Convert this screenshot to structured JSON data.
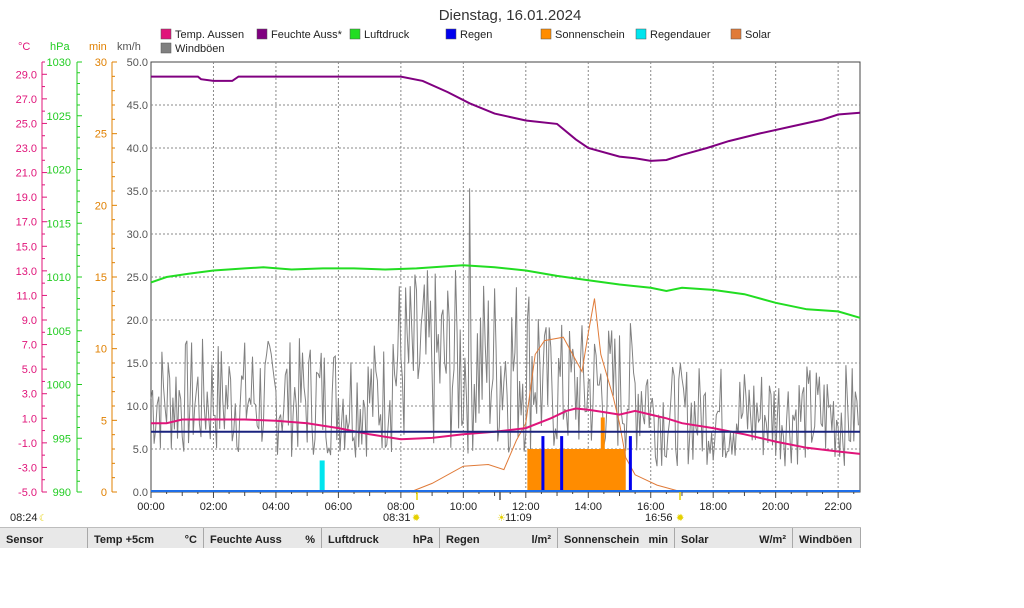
{
  "title": "Dienstag, 16.01.2024",
  "legend": [
    {
      "label": "Temp. Aussen",
      "color": "#e0157a"
    },
    {
      "label": "Feuchte Auss*",
      "color": "#800080"
    },
    {
      "label": "Luftdruck",
      "color": "#22dd22"
    },
    {
      "label": "Regen",
      "color": "#0000ee"
    },
    {
      "label": "Sonnenschein",
      "color": "#ff8c00"
    },
    {
      "label": "Regendauer",
      "color": "#00e5ee"
    },
    {
      "label": "Solar",
      "color": "#e07b39"
    },
    {
      "label": "Windböen",
      "color": "#808080"
    }
  ],
  "axes": {
    "temp": {
      "unit": "°C",
      "color": "#e0157a",
      "ticks": [
        "29.0",
        "27.0",
        "25.0",
        "23.0",
        "21.0",
        "19.0",
        "17.0",
        "15.0",
        "13.0",
        "11.0",
        "9.0",
        "7.0",
        "5.0",
        "3.0",
        "1.0",
        "-1.0",
        "-3.0",
        "-5.0"
      ],
      "range": [
        -5,
        30
      ]
    },
    "pressure": {
      "unit": "hPa",
      "color": "#22cc22",
      "ticks": [
        "1030",
        "1025",
        "1020",
        "1015",
        "1010",
        "1005",
        "1000",
        "995",
        "990"
      ],
      "range": [
        990,
        1030
      ]
    },
    "minutes": {
      "unit": "min",
      "color": "#e08000",
      "ticks": [
        "30",
        "25",
        "20",
        "15",
        "10",
        "5",
        "0"
      ],
      "range": [
        0,
        30
      ]
    },
    "wind": {
      "unit": "km/h",
      "color": "#555555",
      "ticks": [
        "50.0",
        "45.0",
        "40.0",
        "35.0",
        "30.0",
        "25.0",
        "20.0",
        "15.0",
        "10.0",
        "5.0",
        "0.0"
      ],
      "range": [
        0,
        50
      ]
    },
    "x_ticks": [
      "00:00",
      "02:00",
      "04:00",
      "06:00",
      "08:00",
      "10:00",
      "12:00",
      "14:00",
      "16:00",
      "18:00",
      "20:00",
      "22:00"
    ]
  },
  "markers": {
    "moonrise": "08:24",
    "sunrise": "08:31",
    "noon": "11:09",
    "sunset": "16:56"
  },
  "chart_data": {
    "type": "line",
    "x_unit": "hour of day",
    "x_range": [
      0,
      22.7
    ],
    "series": [
      {
        "name": "Feuchte Auss*",
        "axis": "wind",
        "color": "#800080",
        "points": [
          [
            0,
            48.3
          ],
          [
            1.5,
            48.3
          ],
          [
            1.6,
            48.0
          ],
          [
            2,
            47.8
          ],
          [
            2.6,
            47.8
          ],
          [
            2.8,
            48.3
          ],
          [
            8,
            48.3
          ],
          [
            8.7,
            47.8
          ],
          [
            9.5,
            46.5
          ],
          [
            10.2,
            45.2
          ],
          [
            11,
            44.0
          ],
          [
            12,
            43.2
          ],
          [
            13,
            42.8
          ],
          [
            13.6,
            41.0
          ],
          [
            14,
            40.0
          ],
          [
            15,
            39.0
          ],
          [
            15.5,
            38.8
          ],
          [
            16,
            38.5
          ],
          [
            16.5,
            38.6
          ],
          [
            17,
            39.2
          ],
          [
            17.8,
            40.0
          ],
          [
            18.5,
            40.8
          ],
          [
            19.5,
            41.7
          ],
          [
            20.5,
            42.5
          ],
          [
            21.5,
            43.3
          ],
          [
            22.0,
            43.9
          ],
          [
            22.7,
            44.1
          ]
        ]
      },
      {
        "name": "Luftdruck",
        "axis": "pressure",
        "color": "#22dd22",
        "points": [
          [
            0,
            1009.5
          ],
          [
            0.5,
            1010.0
          ],
          [
            1.2,
            1010.3
          ],
          [
            2,
            1010.6
          ],
          [
            3,
            1010.8
          ],
          [
            3.6,
            1010.9
          ],
          [
            4.5,
            1010.7
          ],
          [
            5.5,
            1010.8
          ],
          [
            6.5,
            1010.8
          ],
          [
            7.5,
            1010.7
          ],
          [
            8.5,
            1010.8
          ],
          [
            9.5,
            1011.0
          ],
          [
            10,
            1011.1
          ],
          [
            11,
            1010.9
          ],
          [
            12,
            1010.6
          ],
          [
            13,
            1010.1
          ],
          [
            14,
            1009.7
          ],
          [
            15,
            1009.3
          ],
          [
            16,
            1009.0
          ],
          [
            16.5,
            1008.7
          ],
          [
            17,
            1009.0
          ],
          [
            18,
            1008.8
          ],
          [
            19,
            1008.4
          ],
          [
            20,
            1007.6
          ],
          [
            21,
            1007.0
          ],
          [
            22,
            1006.8
          ],
          [
            22.7,
            1006.2
          ]
        ]
      },
      {
        "name": "Temp. Aussen",
        "axis": "temp",
        "color": "#e0157a",
        "points": [
          [
            0,
            0.6
          ],
          [
            0.5,
            0.6
          ],
          [
            1,
            0.9
          ],
          [
            2,
            0.9
          ],
          [
            3,
            0.9
          ],
          [
            4,
            0.8
          ],
          [
            5,
            0.6
          ],
          [
            6,
            0.2
          ],
          [
            7,
            -0.3
          ],
          [
            8,
            -0.7
          ],
          [
            9,
            -0.6
          ],
          [
            10,
            -0.3
          ],
          [
            11,
            -0.1
          ],
          [
            12,
            0.2
          ],
          [
            12.8,
            1.0
          ],
          [
            13.3,
            1.6
          ],
          [
            13.6,
            1.8
          ],
          [
            14,
            1.7
          ],
          [
            14.5,
            1.5
          ],
          [
            15,
            1.3
          ],
          [
            15.5,
            1.6
          ],
          [
            16,
            1.3
          ],
          [
            16.5,
            1.0
          ],
          [
            17,
            0.6
          ],
          [
            18,
            0.2
          ],
          [
            19,
            -0.3
          ],
          [
            20,
            -0.9
          ],
          [
            21,
            -1.4
          ],
          [
            22,
            -1.7
          ],
          [
            22.7,
            -1.9
          ]
        ]
      },
      {
        "name": "Solar",
        "axis": "wind",
        "color": "#e07b39",
        "points": [
          [
            8.3,
            0
          ],
          [
            9,
            1.0
          ],
          [
            10,
            3.0
          ],
          [
            10.8,
            3.2
          ],
          [
            11.3,
            2.6
          ],
          [
            11.7,
            6
          ],
          [
            12,
            8
          ],
          [
            12.3,
            16
          ],
          [
            12.6,
            17.6
          ],
          [
            13.2,
            18.0
          ],
          [
            13.8,
            14
          ],
          [
            14.0,
            18.5
          ],
          [
            14.2,
            22.5
          ],
          [
            14.4,
            16
          ],
          [
            14.8,
            11
          ],
          [
            15.0,
            8
          ],
          [
            15.2,
            4
          ],
          [
            15.5,
            2
          ],
          [
            16.2,
            0.8
          ],
          [
            17,
            0
          ]
        ]
      },
      {
        "name": "Regendauer",
        "axis": "minutes",
        "color": "#00e5ee",
        "bars": [
          [
            5.4,
            2.2
          ]
        ]
      },
      {
        "name": "Sonnenschein",
        "axis": "minutes",
        "color": "#ff8c00",
        "blocks": [
          [
            12.05,
            15.2,
            2.0
          ]
        ],
        "bars": [
          [
            14.4,
            5.2
          ]
        ]
      },
      {
        "name": "Regen",
        "axis": "wind",
        "color": "#0000ee",
        "bars": [
          [
            12.5,
            6.5
          ],
          [
            13.1,
            6.5
          ],
          [
            15.3,
            6.5
          ]
        ],
        "baseline": 7.0
      },
      {
        "name": "Windböen",
        "axis": "wind",
        "color": "#808080",
        "sample": "gust trace 0-35 km/h, peak 35.3 near 10:10"
      }
    ]
  },
  "sensor_table": {
    "headers": [
      {
        "label": "Sensor",
        "unit": ""
      },
      {
        "label": "Temp +5cm",
        "unit": "°C"
      },
      {
        "label": "Feuchte Auss",
        "unit": "%"
      },
      {
        "label": "Luftdruck",
        "unit": "hPa"
      },
      {
        "label": "Regen",
        "unit": "l/m²"
      },
      {
        "label": "Sonnenschein",
        "unit": "min"
      },
      {
        "label": "Solar",
        "unit": "W/m²"
      },
      {
        "label": "Windböen",
        "unit": ""
      }
    ]
  }
}
